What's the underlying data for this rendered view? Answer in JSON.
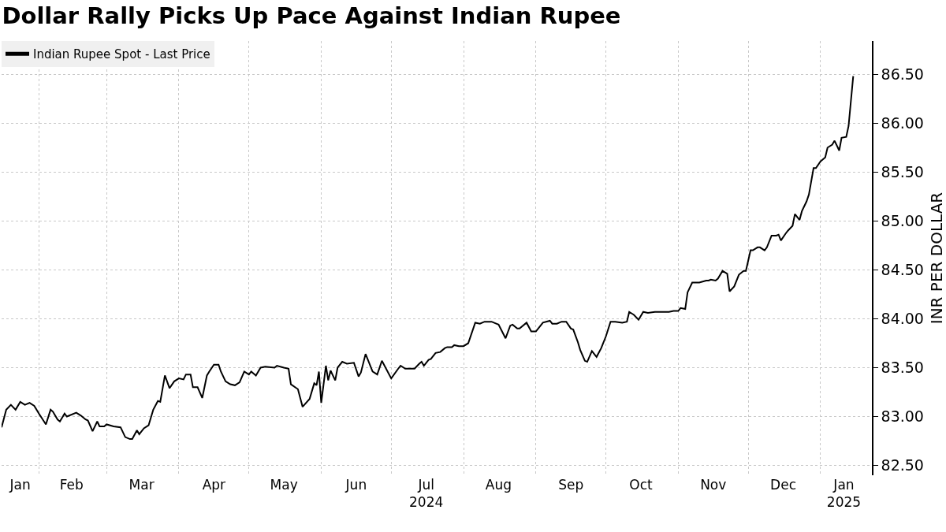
{
  "chart_data": {
    "type": "line",
    "title": "Dollar Rally Picks Up Pace Against Indian Rupee",
    "ylabel": "INR PER DOLLAR",
    "x": [
      "2024-01-16",
      "2024-01-18",
      "2024-01-20",
      "2024-01-22",
      "2024-01-24",
      "2024-01-26",
      "2024-01-28",
      "2024-01-30",
      "2024-02-01",
      "2024-02-04",
      "2024-02-06",
      "2024-02-07",
      "2024-02-09",
      "2024-02-10",
      "2024-02-12",
      "2024-02-13",
      "2024-02-17",
      "2024-02-19",
      "2024-02-21",
      "2024-02-22",
      "2024-02-24",
      "2024-02-26",
      "2024-02-27",
      "2024-02-29",
      "2024-03-01",
      "2024-03-04",
      "2024-03-07",
      "2024-03-09",
      "2024-03-11",
      "2024-03-12",
      "2024-03-14",
      "2024-03-15",
      "2024-03-17",
      "2024-03-19",
      "2024-03-21",
      "2024-03-23",
      "2024-03-24",
      "2024-03-26",
      "2024-03-28",
      "2024-03-30",
      "2024-04-01",
      "2024-04-03",
      "2024-04-04",
      "2024-04-06",
      "2024-04-07",
      "2024-04-09",
      "2024-04-11",
      "2024-04-13",
      "2024-04-14",
      "2024-04-16",
      "2024-04-18",
      "2024-04-19",
      "2024-04-21",
      "2024-04-23",
      "2024-04-25",
      "2024-04-27",
      "2024-04-29",
      "2024-05-01",
      "2024-05-02",
      "2024-05-04",
      "2024-05-06",
      "2024-05-08",
      "2024-05-12",
      "2024-05-13",
      "2024-05-16",
      "2024-05-18",
      "2024-05-19",
      "2024-05-22",
      "2024-05-24",
      "2024-05-27",
      "2024-05-29",
      "2024-05-30",
      "2024-05-31",
      "2024-06-01",
      "2024-06-03",
      "2024-06-04",
      "2024-06-05",
      "2024-06-07",
      "2024-06-08",
      "2024-06-10",
      "2024-06-12",
      "2024-06-15",
      "2024-06-17",
      "2024-06-18",
      "2024-06-20",
      "2024-06-23",
      "2024-06-25",
      "2024-06-27",
      "2024-07-01",
      "2024-07-04",
      "2024-07-05",
      "2024-07-07",
      "2024-07-11",
      "2024-07-13",
      "2024-07-14",
      "2024-07-15",
      "2024-07-17",
      "2024-07-18",
      "2024-07-20",
      "2024-07-22",
      "2024-07-24",
      "2024-07-25",
      "2024-07-27",
      "2024-07-28",
      "2024-07-30",
      "2024-08-01",
      "2024-08-03",
      "2024-08-06",
      "2024-08-08",
      "2024-08-10",
      "2024-08-13",
      "2024-08-15",
      "2024-08-16",
      "2024-08-19",
      "2024-08-21",
      "2024-08-22",
      "2024-08-24",
      "2024-08-25",
      "2024-08-28",
      "2024-08-30",
      "2024-09-01",
      "2024-09-03",
      "2024-09-04",
      "2024-09-07",
      "2024-09-08",
      "2024-09-10",
      "2024-09-12",
      "2024-09-14",
      "2024-09-16",
      "2024-09-17",
      "2024-09-19",
      "2024-09-20",
      "2024-09-22",
      "2024-09-23",
      "2024-09-25",
      "2024-09-27",
      "2024-09-29",
      "2024-10-01",
      "2024-10-03",
      "2024-10-05",
      "2024-10-08",
      "2024-10-10",
      "2024-10-11",
      "2024-10-13",
      "2024-10-15",
      "2024-10-17",
      "2024-10-19",
      "2024-10-22",
      "2024-10-24",
      "2024-10-28",
      "2024-10-30",
      "2024-11-01",
      "2024-11-02",
      "2024-11-04",
      "2024-11-05",
      "2024-11-07",
      "2024-11-10",
      "2024-11-13",
      "2024-11-14",
      "2024-11-15",
      "2024-11-17",
      "2024-11-18",
      "2024-11-20",
      "2024-11-22",
      "2024-11-23",
      "2024-11-25",
      "2024-11-27",
      "2024-11-29",
      "2024-11-30",
      "2024-12-02",
      "2024-12-03",
      "2024-12-05",
      "2024-12-06",
      "2024-12-08",
      "2024-12-09",
      "2024-12-11",
      "2024-12-13",
      "2024-12-14",
      "2024-12-15",
      "2024-12-17",
      "2024-12-18",
      "2024-12-20",
      "2024-12-21",
      "2024-12-23",
      "2024-12-24",
      "2024-12-26",
      "2024-12-27",
      "2024-12-29",
      "2024-12-30",
      "2025-01-01",
      "2025-01-03",
      "2025-01-04",
      "2025-01-06",
      "2025-01-07",
      "2025-01-09",
      "2025-01-10",
      "2025-01-12",
      "2025-01-13",
      "2025-01-15"
    ],
    "series": [
      {
        "name": "Indian Rupee Spot - Last Price",
        "color": "#000000",
        "values": [
          82.89,
          83.07,
          83.12,
          83.07,
          83.15,
          83.12,
          83.14,
          83.11,
          83.03,
          82.92,
          83.07,
          83.05,
          82.97,
          82.95,
          83.03,
          83.0,
          83.04,
          83.01,
          82.97,
          82.96,
          82.85,
          82.95,
          82.9,
          82.9,
          82.92,
          82.9,
          82.89,
          82.79,
          82.77,
          82.77,
          82.86,
          82.82,
          82.88,
          82.91,
          83.07,
          83.16,
          83.15,
          83.42,
          83.29,
          83.36,
          83.39,
          83.38,
          83.43,
          83.43,
          83.3,
          83.3,
          83.19,
          83.42,
          83.46,
          83.53,
          83.53,
          83.46,
          83.36,
          83.33,
          83.32,
          83.35,
          83.46,
          83.43,
          83.46,
          83.42,
          83.5,
          83.51,
          83.5,
          83.52,
          83.5,
          83.49,
          83.33,
          83.28,
          83.1,
          83.18,
          83.34,
          83.32,
          83.46,
          83.14,
          83.52,
          83.37,
          83.47,
          83.37,
          83.5,
          83.56,
          83.54,
          83.55,
          83.41,
          83.45,
          83.64,
          83.46,
          83.43,
          83.57,
          83.39,
          83.49,
          83.52,
          83.49,
          83.49,
          83.54,
          83.56,
          83.52,
          83.58,
          83.59,
          83.65,
          83.66,
          83.7,
          83.71,
          83.71,
          83.73,
          83.72,
          83.72,
          83.75,
          83.96,
          83.95,
          83.97,
          83.97,
          83.95,
          83.94,
          83.8,
          83.93,
          83.94,
          83.9,
          83.9,
          83.96,
          83.87,
          83.87,
          83.93,
          83.96,
          83.98,
          83.95,
          83.95,
          83.97,
          83.97,
          83.9,
          83.89,
          83.76,
          83.68,
          83.57,
          83.56,
          83.67,
          83.61,
          83.7,
          83.82,
          83.97,
          83.97,
          83.96,
          83.97,
          84.07,
          84.04,
          83.99,
          84.07,
          84.06,
          84.07,
          84.07,
          84.07,
          84.08,
          84.08,
          84.11,
          84.1,
          84.27,
          84.37,
          84.37,
          84.39,
          84.39,
          84.4,
          84.39,
          84.41,
          84.49,
          84.46,
          84.28,
          84.33,
          84.45,
          84.49,
          84.49,
          84.7,
          84.7,
          84.73,
          84.73,
          84.7,
          84.73,
          84.85,
          84.85,
          84.86,
          84.8,
          84.87,
          84.9,
          84.95,
          85.07,
          85.01,
          85.1,
          85.2,
          85.27,
          85.54,
          85.54,
          85.61,
          85.65,
          85.75,
          85.78,
          85.82,
          85.72,
          85.85,
          85.86,
          85.97,
          86.48
        ]
      }
    ],
    "xlim": [
      "2024-01-16",
      "2025-01-23"
    ],
    "xticks": [
      {
        "value": "2024-01-24",
        "label": "Jan"
      },
      {
        "value": "2024-02-01",
        "label": null
      },
      {
        "value": "2024-02-15",
        "label": "Feb"
      },
      {
        "value": "2024-03-01",
        "label": null
      },
      {
        "value": "2024-03-16",
        "label": "Mar"
      },
      {
        "value": "2024-04-01",
        "label": null
      },
      {
        "value": "2024-04-16",
        "label": "Apr"
      },
      {
        "value": "2024-05-01",
        "label": null
      },
      {
        "value": "2024-05-16",
        "label": "May"
      },
      {
        "value": "2024-06-01",
        "label": null
      },
      {
        "value": "2024-06-16",
        "label": "Jun"
      },
      {
        "value": "2024-07-01",
        "label": null
      },
      {
        "value": "2024-07-16",
        "label": "Jul\n2024"
      },
      {
        "value": "2024-08-01",
        "label": null
      },
      {
        "value": "2024-08-16",
        "label": "Aug"
      },
      {
        "value": "2024-09-01",
        "label": null
      },
      {
        "value": "2024-09-16",
        "label": "Sep"
      },
      {
        "value": "2024-10-01",
        "label": null
      },
      {
        "value": "2024-10-16",
        "label": "Oct"
      },
      {
        "value": "2024-11-01",
        "label": null
      },
      {
        "value": "2024-11-16",
        "label": "Nov"
      },
      {
        "value": "2024-12-01",
        "label": null
      },
      {
        "value": "2024-12-16",
        "label": "Dec"
      },
      {
        "value": "2025-01-01",
        "label": null
      },
      {
        "value": "2025-01-11",
        "label": "Jan\n2025"
      }
    ],
    "ylim": [
      82.4,
      86.84
    ],
    "yticks": [
      {
        "value": 82.5,
        "label": "82.50"
      },
      {
        "value": 83.0,
        "label": "83.00"
      },
      {
        "value": 83.5,
        "label": "83.50"
      },
      {
        "value": 84.0,
        "label": "84.00"
      },
      {
        "value": 84.5,
        "label": "84.50"
      },
      {
        "value": 85.0,
        "label": "85.00"
      },
      {
        "value": 85.5,
        "label": "85.50"
      },
      {
        "value": 86.0,
        "label": "86.00"
      },
      {
        "value": 86.5,
        "label": "86.50"
      }
    ],
    "grid": true,
    "legend": "top left",
    "marker": "none",
    "line_style": "solid"
  }
}
